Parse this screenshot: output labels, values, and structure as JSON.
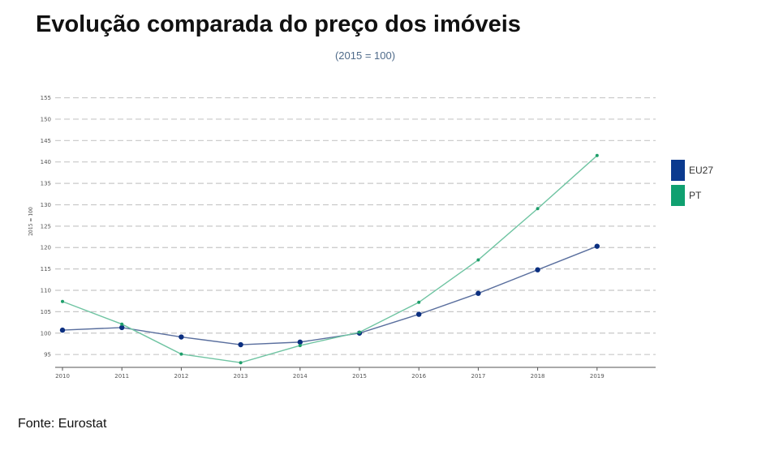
{
  "title": "Evolução comparada do preço dos imóveis",
  "subtitle": "(2015 = 100)",
  "source": "Fonte: Eurostat",
  "chart_data": {
    "type": "line",
    "ylabel": "2015 = 100",
    "xlabel": "",
    "x": [
      "2010",
      "2011",
      "2012",
      "2013",
      "2014",
      "2015",
      "2016",
      "2017",
      "2018",
      "2019"
    ],
    "ylim": [
      92,
      157
    ],
    "yticks": [
      95,
      100,
      105,
      110,
      115,
      120,
      125,
      130,
      135,
      140,
      145,
      150,
      155
    ],
    "grid": true,
    "legend": "right",
    "series": [
      {
        "name": "EU27",
        "color": "#5a6f9e",
        "marker_color": "#0b2f80",
        "legend_color": "#0b3a8f",
        "values": [
          100.7,
          101.3,
          99.1,
          97.3,
          97.9,
          100.0,
          104.4,
          109.3,
          114.8,
          120.3
        ]
      },
      {
        "name": "PT",
        "color": "#6fc4a2",
        "marker_color": "#1e9e6a",
        "legend_color": "#10a070",
        "values": [
          107.4,
          102.1,
          95.1,
          93.1,
          97.1,
          100.2,
          107.2,
          117.1,
          129.1,
          141.5
        ]
      }
    ]
  }
}
